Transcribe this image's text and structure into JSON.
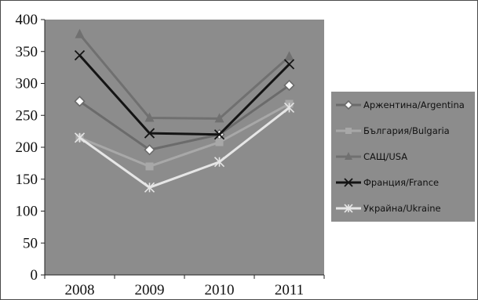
{
  "chart_data": {
    "type": "line",
    "categories": [
      "2008",
      "2009",
      "2010",
      "2011"
    ],
    "ylim": [
      0,
      400
    ],
    "yticks": [
      "0",
      "50",
      "100",
      "150",
      "200",
      "250",
      "300",
      "350",
      "400"
    ],
    "grid": false,
    "legend_position": "right",
    "plot_background": "#8c8c8c",
    "series": [
      {
        "name": "Аржентина/Argentina",
        "values": [
          272,
          196,
          220,
          297
        ],
        "color": "#6b6b6b",
        "marker": "diamond-open"
      },
      {
        "name": "България/Bulgaria",
        "values": [
          215,
          170,
          208,
          268
        ],
        "color": "#a8a8a8",
        "marker": "square"
      },
      {
        "name": "САЩ/USA",
        "values": [
          377,
          246,
          245,
          342
        ],
        "color": "#707070",
        "marker": "triangle"
      },
      {
        "name": "Франция/France",
        "values": [
          344,
          222,
          220,
          330
        ],
        "color": "#141414",
        "marker": "x"
      },
      {
        "name": "Украйна/Ukraine",
        "values": [
          215,
          137,
          177,
          262
        ],
        "color": "#e6e6e6",
        "marker": "star"
      }
    ]
  }
}
